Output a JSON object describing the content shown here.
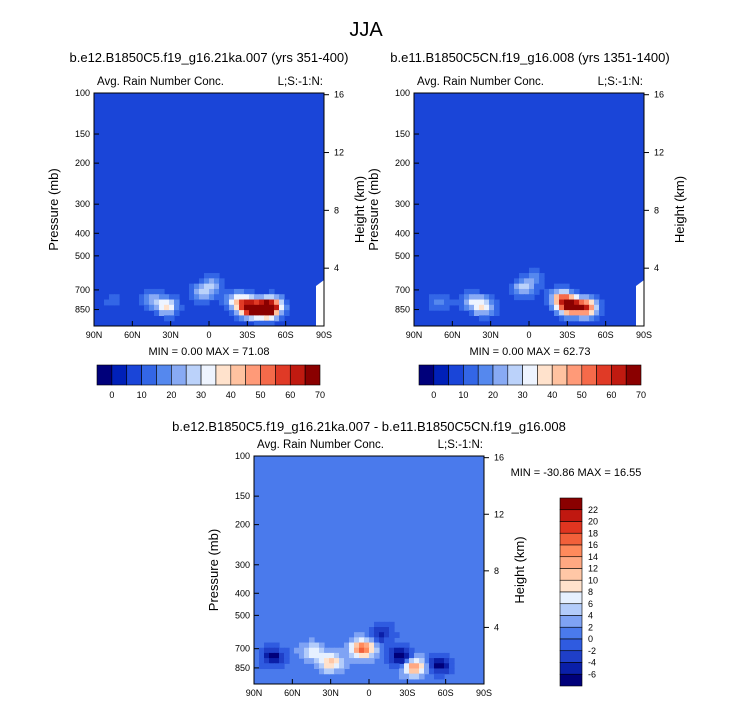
{
  "page_title": "JJA",
  "colors": {
    "sequential": [
      "#00007a",
      "#0020b8",
      "#1a45d8",
      "#3366e6",
      "#5588ee",
      "#88aaf4",
      "#bbd2fa",
      "#eef4ff",
      "#ffe2cc",
      "#ffc2a0",
      "#ff9a78",
      "#f56a4a",
      "#e03a26",
      "#c01a10",
      "#8a0000"
    ],
    "difference": [
      "#00007a",
      "#0a1fa8",
      "#1f3fc8",
      "#2f5be0",
      "#4a7aec",
      "#7fa3f4",
      "#b3ccfa",
      "#e6f0ff",
      "#ffe2cc",
      "#ffc7a6",
      "#ffa882",
      "#ff8a5c",
      "#f2603a",
      "#e03520",
      "#c01810",
      "#8a0000"
    ]
  },
  "chart_data": [
    {
      "type": "heatmap",
      "title": "b.e12.B1850C5.f19_g16.21ka.007 (yrs 351-400)",
      "subtitle_left": "Avg. Rain Number Conc.",
      "subtitle_right": "L;S:-1:N:",
      "ylabel": "Pressure (mb)",
      "ylabel_right": "Height (km)",
      "x_ticks": [
        "90N",
        "60N",
        "30N",
        "0",
        "30S",
        "60S",
        "90S"
      ],
      "y_ticks": [
        "100",
        "150",
        "200",
        "300",
        "400",
        "500",
        "700",
        "850"
      ],
      "y_ticks_right": [
        "16",
        "12",
        "8",
        "4"
      ],
      "ylim": [
        1000,
        100
      ],
      "stats": "MIN =   0.00   MAX =  71.08",
      "colorbar_labels": [
        "0",
        "10",
        "20",
        "30",
        "40",
        "50",
        "60",
        "70"
      ],
      "levels": [
        -5,
        0,
        5,
        10,
        15,
        20,
        25,
        30,
        35,
        40,
        45,
        50,
        55,
        60,
        65,
        70
      ],
      "features": [
        {
          "lat": 45,
          "p": 760,
          "value": 15
        },
        {
          "lat": 33,
          "p": 825,
          "value": 30
        },
        {
          "lat": 5,
          "p": 720,
          "value": 20
        },
        {
          "lat": -3,
          "p": 660,
          "value": 15
        },
        {
          "lat": -22,
          "p": 780,
          "value": 28
        },
        {
          "lat": -32,
          "p": 835,
          "value": 68
        },
        {
          "lat": -45,
          "p": 850,
          "value": 60
        },
        {
          "lat": -50,
          "p": 810,
          "value": 35
        },
        {
          "lat": 75,
          "p": 780,
          "value": 8
        }
      ]
    },
    {
      "type": "heatmap",
      "title": "b.e11.B1850C5CN.f19_g16.008 (yrs 1351-1400)",
      "subtitle_left": "Avg. Rain Number Conc.",
      "subtitle_right": "L;S:-1:N:",
      "ylabel": "Pressure (mb)",
      "ylabel_right": "Height (km)",
      "x_ticks": [
        "90N",
        "60N",
        "30N",
        "0",
        "30S",
        "60S",
        "90S"
      ],
      "y_ticks": [
        "100",
        "150",
        "200",
        "300",
        "400",
        "500",
        "700",
        "850"
      ],
      "y_ticks_right": [
        "16",
        "12",
        "8",
        "4"
      ],
      "ylim": [
        1000,
        100
      ],
      "stats": "MIN =   0.00   MAX =  62.73",
      "colorbar_labels": [
        "0",
        "10",
        "20",
        "30",
        "40",
        "50",
        "60",
        "70"
      ],
      "levels": [
        -5,
        0,
        5,
        10,
        15,
        20,
        25,
        30,
        35,
        40,
        45,
        50,
        55,
        60,
        65,
        70
      ],
      "features": [
        {
          "lat": 45,
          "p": 780,
          "value": 20
        },
        {
          "lat": 35,
          "p": 830,
          "value": 28
        },
        {
          "lat": 5,
          "p": 690,
          "value": 22
        },
        {
          "lat": -5,
          "p": 620,
          "value": 12
        },
        {
          "lat": -25,
          "p": 760,
          "value": 35
        },
        {
          "lat": -32,
          "p": 820,
          "value": 60
        },
        {
          "lat": -45,
          "p": 835,
          "value": 52
        },
        {
          "lat": 70,
          "p": 790,
          "value": 12
        }
      ]
    },
    {
      "type": "heatmap",
      "title": "b.e12.B1850C5.f19_g16.21ka.007 - b.e11.B1850C5CN.f19_g16.008",
      "subtitle_left": "Avg. Rain Number Conc.",
      "subtitle_right": "L;S:-1:N:",
      "ylabel": "Pressure (mb)",
      "ylabel_right": "Height (km)",
      "x_ticks": [
        "90N",
        "60N",
        "30N",
        "0",
        "30S",
        "60S",
        "90S"
      ],
      "y_ticks": [
        "100",
        "150",
        "200",
        "300",
        "400",
        "500",
        "700",
        "850"
      ],
      "y_ticks_right": [
        "16",
        "12",
        "8",
        "4"
      ],
      "ylim": [
        1000,
        100
      ],
      "stats": "MIN = -30.86   MAX =  16.55",
      "colorbar_labels": [
        "22",
        "20",
        "18",
        "16",
        "14",
        "12",
        "10",
        "8",
        "6",
        "4",
        "2",
        "0",
        "-2",
        "-4",
        "-6"
      ],
      "levels": [
        -6,
        -4,
        -2,
        0,
        2,
        4,
        6,
        8,
        10,
        12,
        14,
        16,
        18,
        20,
        22
      ],
      "features": [
        {
          "lat": 75,
          "p": 760,
          "value": -8
        },
        {
          "lat": 45,
          "p": 720,
          "value": 6
        },
        {
          "lat": 30,
          "p": 800,
          "value": 10
        },
        {
          "lat": 5,
          "p": 700,
          "value": 16
        },
        {
          "lat": -10,
          "p": 600,
          "value": -6
        },
        {
          "lat": -25,
          "p": 760,
          "value": -10
        },
        {
          "lat": -35,
          "p": 840,
          "value": 14
        },
        {
          "lat": -55,
          "p": 820,
          "value": -8
        }
      ]
    }
  ]
}
